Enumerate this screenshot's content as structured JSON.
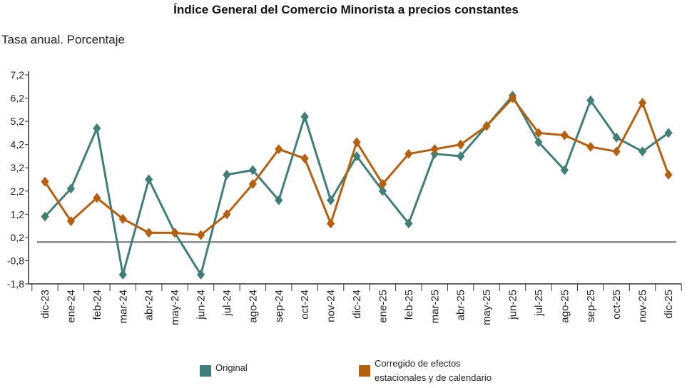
{
  "chart_data": {
    "type": "line",
    "title": "Índice General del Comercio Minorista a precios constantes",
    "subtitle": "Tasa anual. Porcentaje",
    "xlabel": "",
    "ylabel": "",
    "ylim": [
      -1.8,
      7.2
    ],
    "y_ticks": [
      "7,2",
      "6,2",
      "5,2",
      "4,2",
      "3,2",
      "2,2",
      "1,2",
      "0,2",
      "-0,8",
      "-1,8"
    ],
    "y_tick_values": [
      7.2,
      6.2,
      5.2,
      4.2,
      3.2,
      2.2,
      1.2,
      0.2,
      -0.8,
      -1.8
    ],
    "reference_line": 0,
    "categories": [
      "dic-23",
      "ene-24",
      "feb-24",
      "mar-24",
      "abr-24",
      "may-24",
      "jun-24",
      "jul-24",
      "ago-24",
      "sep-24",
      "oct-24",
      "nov-24",
      "dic-24",
      "ene-25",
      "feb-25",
      "mar-25",
      "abr-25",
      "may-25",
      "jun-25",
      "jul-25",
      "ago-25",
      "sep-25",
      "oct-25",
      "nov-25",
      "dic-25"
    ],
    "series": [
      {
        "name": "Original",
        "color": "#3f7f78",
        "values": [
          1.1,
          2.3,
          4.9,
          -1.4,
          2.7,
          0.4,
          -1.4,
          2.9,
          3.1,
          1.8,
          5.4,
          1.8,
          3.7,
          2.2,
          0.8,
          3.8,
          3.7,
          5.0,
          6.3,
          4.3,
          3.1,
          6.1,
          4.5,
          3.9,
          4.7
        ]
      },
      {
        "name": "Corregido de efectos estacionales y de calendario",
        "color": "#b5600f",
        "values": [
          2.6,
          0.9,
          1.9,
          1.0,
          0.4,
          0.4,
          0.3,
          1.2,
          2.5,
          4.0,
          3.6,
          0.8,
          4.3,
          2.5,
          3.8,
          4.0,
          4.2,
          5.0,
          6.2,
          4.7,
          4.6,
          4.1,
          3.9,
          6.0,
          2.9
        ]
      }
    ],
    "legend": {
      "placement": "bottom",
      "items": [
        "Original",
        "Corregido de efectos estacionales y de calendario"
      ]
    },
    "legend_lines": [
      "Corregido de efectos",
      "estacionales y de calendario"
    ]
  }
}
